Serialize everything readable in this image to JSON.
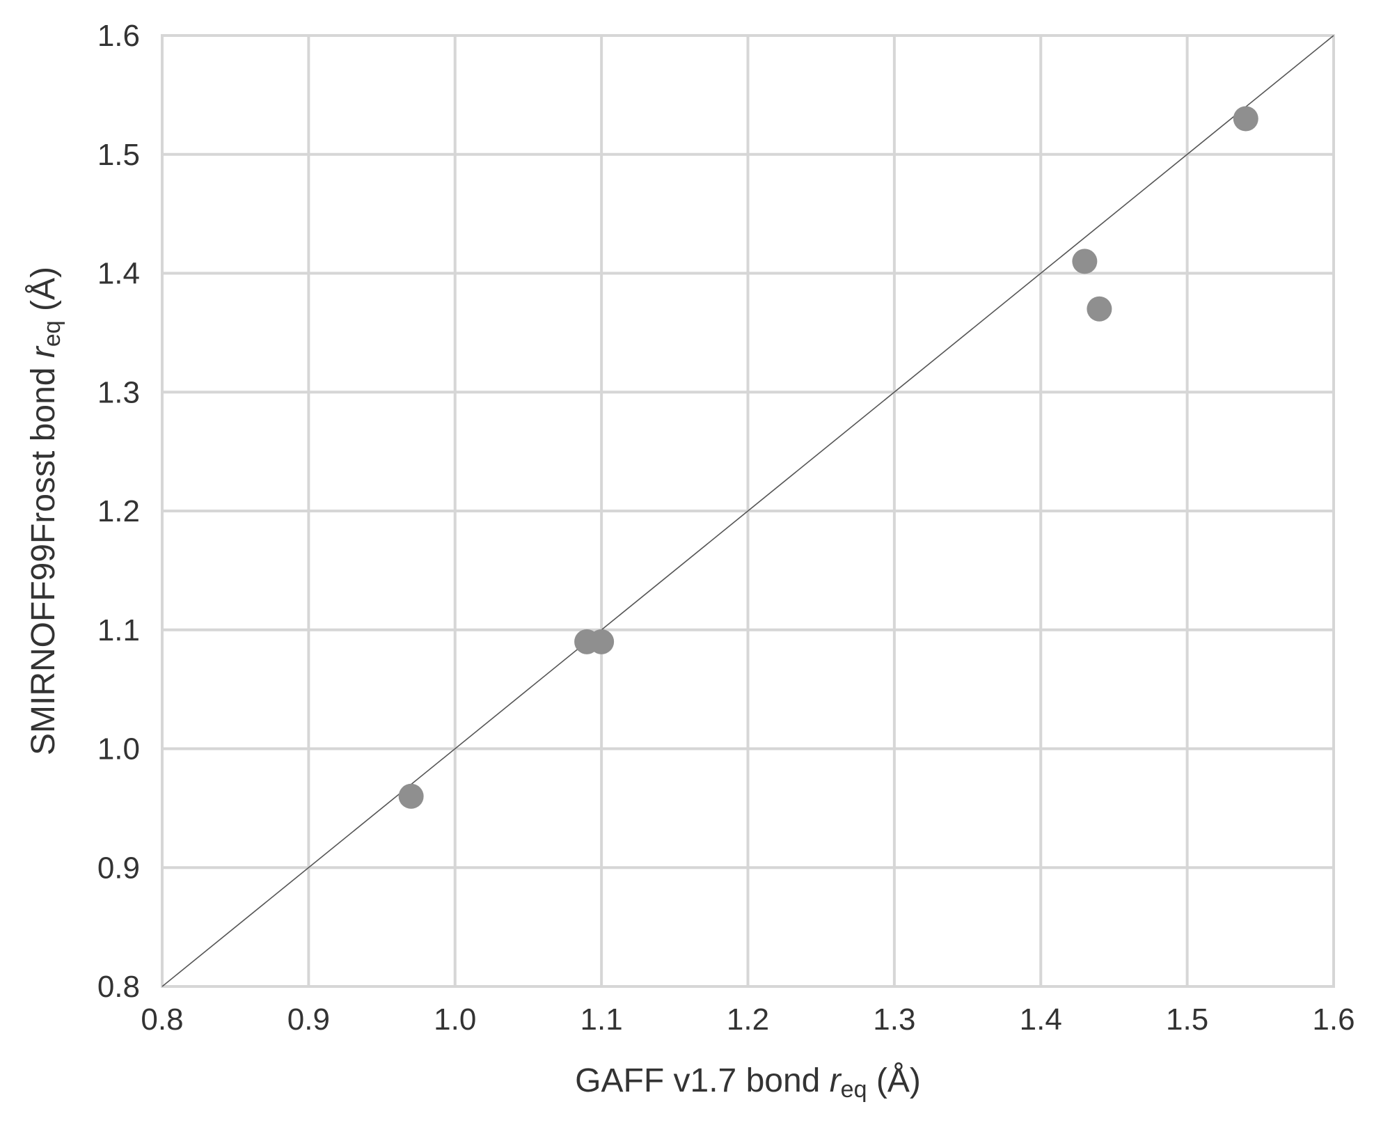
{
  "chart_data": {
    "type": "scatter",
    "xlabel": {
      "prefix": "GAFF v1.7 bond ",
      "var": "r",
      "sub": "eq",
      "suffix": " (Å)"
    },
    "ylabel": {
      "prefix": "SMIRNOFF99Frosst bond ",
      "var": "r",
      "sub": "eq",
      "suffix": " (Å)"
    },
    "xlim": [
      0.8,
      1.6
    ],
    "ylim": [
      0.8,
      1.6
    ],
    "x_ticks": [
      "0.8",
      "0.9",
      "1.0",
      "1.1",
      "1.2",
      "1.3",
      "1.4",
      "1.5",
      "1.6"
    ],
    "y_ticks": [
      "0.8",
      "0.9",
      "1.0",
      "1.1",
      "1.2",
      "1.3",
      "1.4",
      "1.5",
      "1.6"
    ],
    "grid": true,
    "reference_line": "y = x",
    "point_color": "#8f8f8f",
    "points": [
      {
        "x": 0.97,
        "y": 0.96
      },
      {
        "x": 1.09,
        "y": 1.09
      },
      {
        "x": 1.1,
        "y": 1.09
      },
      {
        "x": 1.43,
        "y": 1.41
      },
      {
        "x": 1.44,
        "y": 1.37
      },
      {
        "x": 1.54,
        "y": 1.53
      }
    ]
  }
}
